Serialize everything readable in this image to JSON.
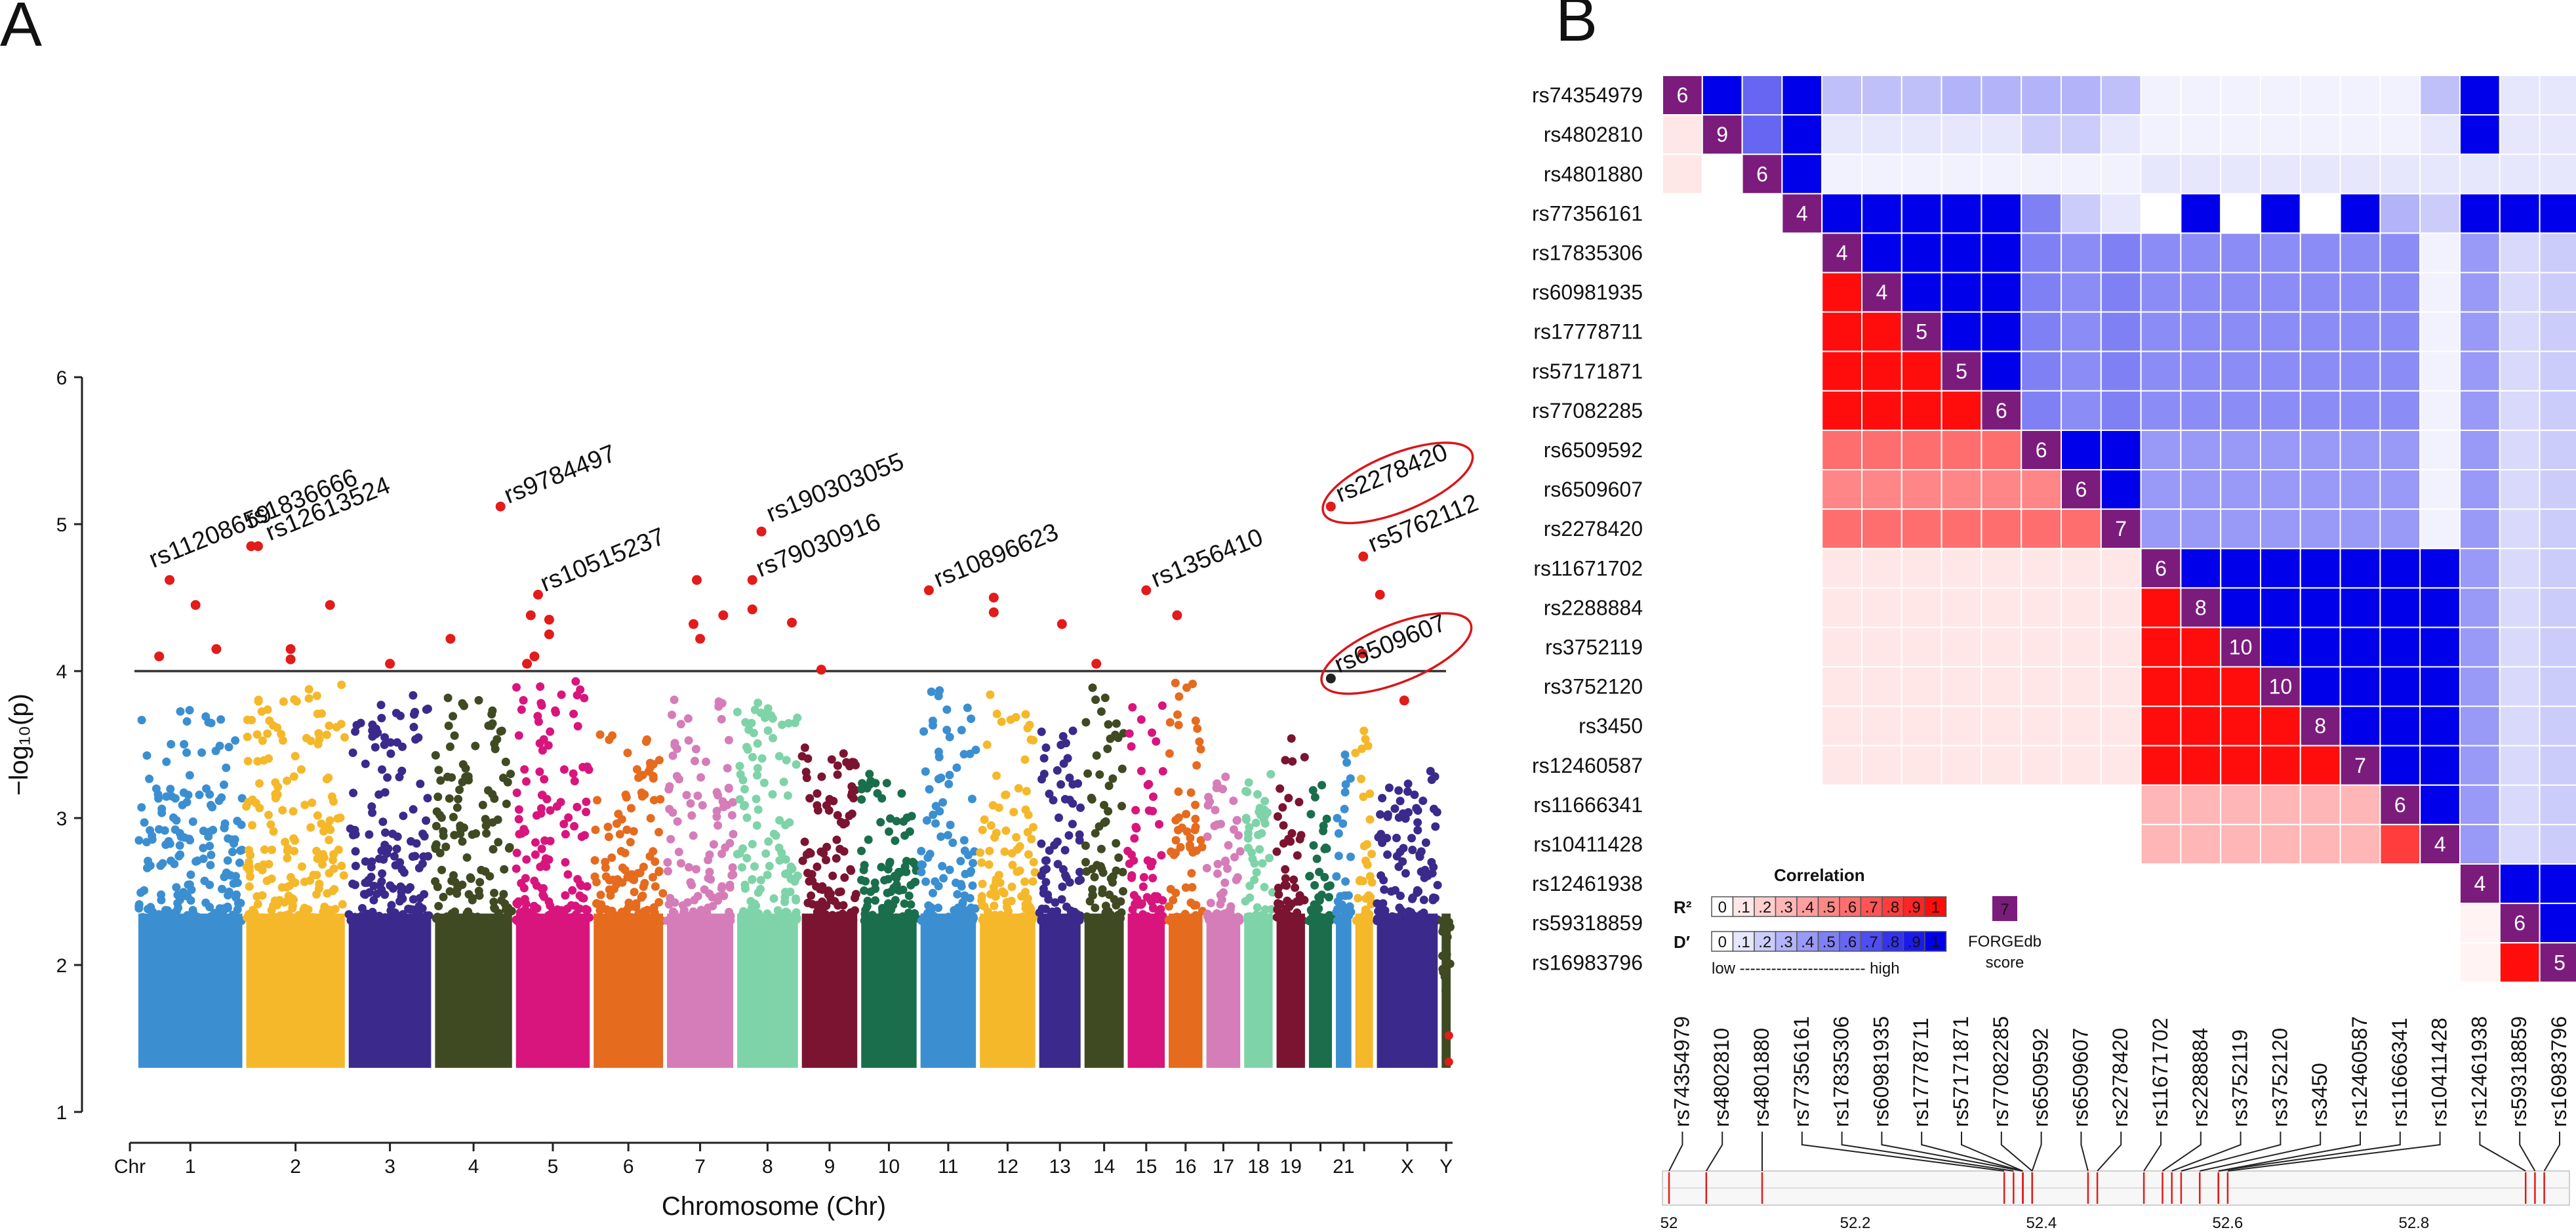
{
  "panels": {
    "a_letter": "A",
    "b_letter": "B"
  },
  "chart_data": [
    {
      "type": "scatter",
      "name": "manhattan",
      "xlabel": "Chromosome (Chr)",
      "ylabel": "−log₁₀(p)",
      "ylim": [
        1,
        6
      ],
      "yticks": [
        1,
        2,
        3,
        4,
        5,
        6
      ],
      "threshold": 4,
      "chr_axis_label": "Chr",
      "chromosomes": [
        {
          "chr": "1",
          "label": "1",
          "color": "#3b8fd1"
        },
        {
          "chr": "2",
          "label": "2",
          "color": "#f5b82a"
        },
        {
          "chr": "3",
          "label": "3",
          "color": "#3b2a8c"
        },
        {
          "chr": "4",
          "label": "4",
          "color": "#3f4a22"
        },
        {
          "chr": "5",
          "label": "5",
          "color": "#d8157d"
        },
        {
          "chr": "6",
          "label": "6",
          "color": "#e56b1f"
        },
        {
          "chr": "7",
          "label": "7",
          "color": "#d57db8"
        },
        {
          "chr": "8",
          "label": "8",
          "color": "#7fd3a8"
        },
        {
          "chr": "9",
          "label": "9",
          "color": "#7a1430"
        },
        {
          "chr": "10",
          "label": "10",
          "color": "#1a6e4c"
        },
        {
          "chr": "11",
          "label": "11",
          "color": "#3b8fd1"
        },
        {
          "chr": "12",
          "label": "12",
          "color": "#f5b82a"
        },
        {
          "chr": "13",
          "label": "13",
          "color": "#3b2a8c"
        },
        {
          "chr": "14",
          "label": "14",
          "color": "#3f4a22"
        },
        {
          "chr": "15",
          "label": "15",
          "color": "#d8157d"
        },
        {
          "chr": "16",
          "label": "16",
          "color": "#e56b1f"
        },
        {
          "chr": "17",
          "label": "17",
          "color": "#d57db8"
        },
        {
          "chr": "18",
          "label": "18",
          "color": "#7fd3a8"
        },
        {
          "chr": "19",
          "label": "19",
          "color": "#7a1430"
        },
        {
          "chr": "20",
          "label": "",
          "color": "#1a6e4c"
        },
        {
          "chr": "21",
          "label": "21",
          "color": "#3b8fd1"
        },
        {
          "chr": "22",
          "label": "",
          "color": "#f5b82a"
        },
        {
          "chr": "X",
          "label": "X",
          "color": "#3b2a8c"
        },
        {
          "chr": "Y",
          "label": "Y",
          "color": "#3f4a22"
        }
      ],
      "significant_points": [
        {
          "chr": "1",
          "pos": 0.3,
          "y": 4.62,
          "label": "rs11208659"
        },
        {
          "chr": "1",
          "pos": 0.55,
          "y": 4.45,
          "label": ""
        },
        {
          "chr": "1",
          "pos": 0.2,
          "y": 4.1,
          "label": ""
        },
        {
          "chr": "1",
          "pos": 0.75,
          "y": 4.15,
          "label": ""
        },
        {
          "chr": "2",
          "pos": 0.05,
          "y": 4.85,
          "label": "rs1836666"
        },
        {
          "chr": "2",
          "pos": 0.12,
          "y": 4.85,
          "label": "rs12613524"
        },
        {
          "chr": "2",
          "pos": 0.45,
          "y": 4.15,
          "label": ""
        },
        {
          "chr": "2",
          "pos": 0.85,
          "y": 4.45,
          "label": ""
        },
        {
          "chr": "2",
          "pos": 0.45,
          "y": 4.08,
          "label": ""
        },
        {
          "chr": "3",
          "pos": 0.5,
          "y": 4.05,
          "label": ""
        },
        {
          "chr": "4",
          "pos": 0.2,
          "y": 4.22,
          "label": ""
        },
        {
          "chr": "4",
          "pos": 0.85,
          "y": 5.12,
          "label": "rs9784497"
        },
        {
          "chr": "5",
          "pos": 0.15,
          "y": 4.05,
          "label": ""
        },
        {
          "chr": "5",
          "pos": 0.3,
          "y": 4.52,
          "label": "rs10515237"
        },
        {
          "chr": "5",
          "pos": 0.2,
          "y": 4.38,
          "label": ""
        },
        {
          "chr": "5",
          "pos": 0.45,
          "y": 4.35,
          "label": ""
        },
        {
          "chr": "5",
          "pos": 0.45,
          "y": 4.25,
          "label": ""
        },
        {
          "chr": "5",
          "pos": 0.25,
          "y": 4.1,
          "label": ""
        },
        {
          "chr": "7",
          "pos": 0.45,
          "y": 4.62,
          "label": ""
        },
        {
          "chr": "7",
          "pos": 0.4,
          "y": 4.32,
          "label": ""
        },
        {
          "chr": "7",
          "pos": 0.85,
          "y": 4.38,
          "label": ""
        },
        {
          "chr": "7",
          "pos": 0.5,
          "y": 4.22,
          "label": ""
        },
        {
          "chr": "8",
          "pos": 0.4,
          "y": 4.95,
          "label": "rs190303055"
        },
        {
          "chr": "8",
          "pos": 0.25,
          "y": 4.62,
          "label": "rs79030916"
        },
        {
          "chr": "8",
          "pos": 0.25,
          "y": 4.42,
          "label": ""
        },
        {
          "chr": "8",
          "pos": 0.9,
          "y": 4.33,
          "label": ""
        },
        {
          "chr": "9",
          "pos": 0.35,
          "y": 4.01,
          "label": ""
        },
        {
          "chr": "11",
          "pos": 0.15,
          "y": 4.55,
          "label": "rs10896623"
        },
        {
          "chr": "12",
          "pos": 0.25,
          "y": 4.5,
          "label": ""
        },
        {
          "chr": "12",
          "pos": 0.25,
          "y": 4.4,
          "label": ""
        },
        {
          "chr": "13",
          "pos": 0.55,
          "y": 4.32,
          "label": ""
        },
        {
          "chr": "14",
          "pos": 0.3,
          "y": 4.05,
          "label": ""
        },
        {
          "chr": "15",
          "pos": 0.5,
          "y": 4.55,
          "label": "rs1356410"
        },
        {
          "chr": "16",
          "pos": 0.25,
          "y": 4.38,
          "label": ""
        },
        {
          "chr": "20",
          "pos": 0.95,
          "y": 5.12,
          "label": "rs2278420"
        },
        {
          "chr": "20",
          "pos": 0.95,
          "y": 3.95,
          "label": "rs6509607"
        },
        {
          "chr": "22",
          "pos": 0.45,
          "y": 4.78,
          "label": "rs5762112"
        },
        {
          "chr": "22",
          "pos": 0.4,
          "y": 4.12,
          "label": ""
        },
        {
          "chr": "X",
          "pos": 0.05,
          "y": 4.52,
          "label": ""
        },
        {
          "chr": "X",
          "pos": 0.45,
          "y": 3.8,
          "label": ""
        }
      ],
      "annotations": [
        "rs2278420",
        "rs6509607"
      ]
    },
    {
      "type": "heatmap",
      "name": "ld-matrix",
      "snps": [
        "rs74354979",
        "rs4802810",
        "rs4801880",
        "rs77356161",
        "rs17835306",
        "rs60981935",
        "rs17778711",
        "rs57171871",
        "rs77082285",
        "rs6509592",
        "rs6509607",
        "rs2278420",
        "rs11671702",
        "rs2288884",
        "rs3752119",
        "rs3752120",
        "rs3450",
        "rs12460587",
        "rs11666341",
        "rs10411428",
        "rs12461938",
        "rs59318859",
        "rs16983796"
      ],
      "forgedb_scores": [
        6,
        9,
        6,
        4,
        4,
        4,
        5,
        5,
        6,
        6,
        6,
        7,
        6,
        8,
        10,
        10,
        8,
        7,
        6,
        4,
        4,
        6,
        5
      ],
      "r2_blocks": [
        {
          "rows": [
            1,
            2
          ],
          "cols": [
            0,
            0
          ],
          "value": 0.1
        },
        {
          "rows": [
            5,
            8
          ],
          "cols": [
            4,
            7
          ],
          "value": 1.0
        },
        {
          "rows": [
            9,
            9
          ],
          "cols": [
            4,
            8
          ],
          "value": 0.6
        },
        {
          "rows": [
            10,
            10
          ],
          "cols": [
            4,
            9
          ],
          "value": 0.5
        },
        {
          "rows": [
            11,
            11
          ],
          "cols": [
            4,
            10
          ],
          "value": 0.6
        },
        {
          "rows": [
            12,
            17
          ],
          "cols": [
            4,
            11
          ],
          "value": 0.1
        },
        {
          "rows": [
            13,
            17
          ],
          "cols": [
            12,
            16
          ],
          "value": 1.0
        },
        {
          "rows": [
            18,
            19
          ],
          "cols": [
            12,
            17
          ],
          "value": 0.3
        },
        {
          "rows": [
            19,
            19
          ],
          "cols": [
            18,
            18
          ],
          "value": 0.8
        },
        {
          "rows": [
            21,
            22
          ],
          "cols": [
            20,
            20
          ],
          "value": 0.05
        },
        {
          "rows": [
            22,
            22
          ],
          "cols": [
            21,
            21
          ],
          "value": 1.0
        }
      ],
      "dprime_blocks": [
        {
          "row": 0,
          "cols": [
            1,
            3
          ],
          "values": [
            1.0,
            0.6,
            1.0
          ]
        },
        {
          "row": 0,
          "cols": [
            4,
            11
          ],
          "values": [
            0.25,
            0.25,
            0.25,
            0.3,
            0.3,
            0.3,
            0.3,
            0.25
          ]
        },
        {
          "row": 0,
          "cols": [
            12,
            19
          ],
          "values": [
            0.05,
            0.05,
            0.05,
            0.05,
            0.05,
            0.05,
            0.05,
            0.25
          ]
        },
        {
          "row": 0,
          "cols": [
            20,
            22
          ],
          "values": [
            1.0,
            0.1,
            0.1
          ]
        },
        {
          "row": 1,
          "cols": [
            2,
            3
          ],
          "values": [
            0.6,
            1.0
          ]
        },
        {
          "row": 1,
          "cols": [
            4,
            11
          ],
          "values": [
            0.1,
            0.1,
            0.1,
            0.1,
            0.1,
            0.2,
            0.2,
            0.1
          ]
        },
        {
          "row": 1,
          "cols": [
            12,
            19
          ],
          "values": [
            0.05,
            0.05,
            0.05,
            0.05,
            0.05,
            0.05,
            0.05,
            0.1
          ]
        },
        {
          "row": 1,
          "cols": [
            20,
            22
          ],
          "values": [
            1.0,
            0.1,
            0.1
          ]
        },
        {
          "row": 2,
          "cols": [
            3,
            3
          ],
          "values": [
            1.0
          ]
        },
        {
          "row": 2,
          "cols": [
            4,
            22
          ],
          "values": [
            0.05,
            0.05,
            0.05,
            0.05,
            0.05,
            0.05,
            0.05,
            0.05,
            0.1,
            0.1,
            0.1,
            0.1,
            0.1,
            0.1,
            0.1,
            0.1,
            0.1,
            0.1,
            0.1
          ]
        },
        {
          "row": 3,
          "cols": [
            4,
            22
          ],
          "values": [
            1.0,
            1.0,
            1.0,
            1.0,
            1.0,
            0.5,
            0.2,
            0.1,
            0.0,
            1.0,
            0.0,
            1.0,
            0.0,
            1.0,
            0.3,
            0.2,
            1.0,
            1.0,
            1.0
          ]
        }
      ],
      "legend": {
        "title": "Correlation",
        "r2_label": "R²",
        "dprime_label": "D′",
        "scale": [
          "0",
          ".1",
          ".2",
          ".3",
          ".4",
          ".5",
          ".6",
          ".7",
          ".8",
          ".9",
          "1"
        ],
        "low_high": "low ------------------------ high",
        "score_sample": "7",
        "score_label_1": "FORGEdb",
        "score_label_2": "score"
      },
      "positions_mb": [
        52.0,
        52.04,
        52.1,
        52.36,
        52.37,
        52.38,
        52.38,
        52.38,
        52.39,
        52.39,
        52.45,
        52.46,
        52.51,
        52.53,
        52.54,
        52.55,
        52.57,
        52.59,
        52.59,
        52.6,
        52.92,
        52.93,
        52.94
      ],
      "track_axis": {
        "ticks": [
          "52",
          "52.2",
          "52.4",
          "52.6",
          "52.8"
        ],
        "min": 52.0,
        "max": 52.96
      }
    }
  ]
}
